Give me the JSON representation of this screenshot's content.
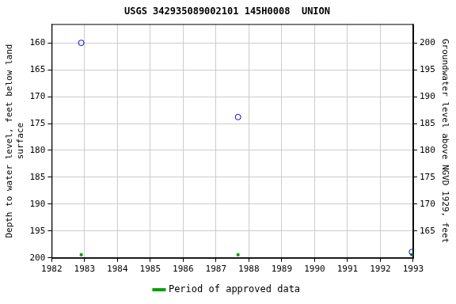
{
  "chart_data": {
    "type": "scatter",
    "title": "USGS 342935089002101 145H0008  UNION",
    "y_label": [
      "Depth to water level, feet below land",
      "surface"
    ],
    "y2_label": "Groundwater level above NGVD 1929, feet",
    "x": [
      1982.9,
      1987.67,
      1992.96
    ],
    "series": [
      {
        "color": "#0000cc",
        "marker": "circle",
        "values": [
          160,
          173.8,
          198.9
        ]
      },
      {
        "name": "Period of approved data",
        "color": "#00a000",
        "marker": "square",
        "values": [
          199.4,
          199.4,
          199.4
        ]
      }
    ],
    "xlim": [
      1982,
      1993
    ],
    "xticks": [
      1982,
      1983,
      1984,
      1985,
      1986,
      1987,
      1988,
      1989,
      1990,
      1991,
      1992,
      1993
    ],
    "ylim": [
      156.5,
      200
    ],
    "yticks": [
      160,
      165,
      170,
      175,
      180,
      185,
      190,
      195,
      200
    ],
    "y2lim": [
      160,
      203.5
    ],
    "y2ticks": [
      165,
      170,
      175,
      180,
      185,
      190,
      195,
      200
    ],
    "grid": true,
    "legend": "bottom"
  }
}
